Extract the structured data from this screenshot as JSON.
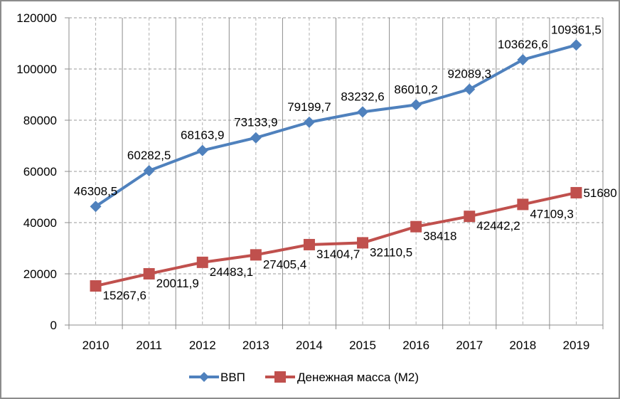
{
  "chart_data": {
    "type": "line",
    "title": "",
    "xlabel": "",
    "ylabel": "",
    "categories": [
      "2010",
      "2011",
      "2012",
      "2013",
      "2014",
      "2015",
      "2016",
      "2017",
      "2018",
      "2019"
    ],
    "ylim": [
      0,
      120000
    ],
    "yticks": [
      0,
      20000,
      40000,
      60000,
      80000,
      100000,
      120000
    ],
    "ytick_labels": [
      "0",
      "20000",
      "40000",
      "60000",
      "80000",
      "100000",
      "120000"
    ],
    "grid": true,
    "legend_position": "bottom",
    "series": [
      {
        "name": "ВВП",
        "color": "#4f81bd",
        "marker": "diamond",
        "values": [
          46308.5,
          60282.5,
          68163.9,
          73133.9,
          79199.7,
          83232.6,
          86010.2,
          92089.3,
          103626.6,
          109361.5
        ],
        "labels": [
          "46308,5",
          "60282,5",
          "68163,9",
          "73133,9",
          "79199,7",
          "83232,6",
          "86010,2",
          "92089,3",
          "103626,6",
          "109361,5"
        ],
        "label_position": "above"
      },
      {
        "name": "Денежная масса (М2)",
        "color": "#c0504d",
        "marker": "square",
        "values": [
          15267.6,
          20011.9,
          24483.1,
          27405.4,
          31404.7,
          32110.5,
          38418,
          42442.2,
          47109.3,
          51680
        ],
        "labels": [
          "15267,6",
          "20011,9",
          "24483,1",
          "27405,4",
          "31404,7",
          "32110,5",
          "38418",
          "42442,2",
          "47109,3",
          "51680"
        ],
        "label_position": "right"
      }
    ]
  }
}
